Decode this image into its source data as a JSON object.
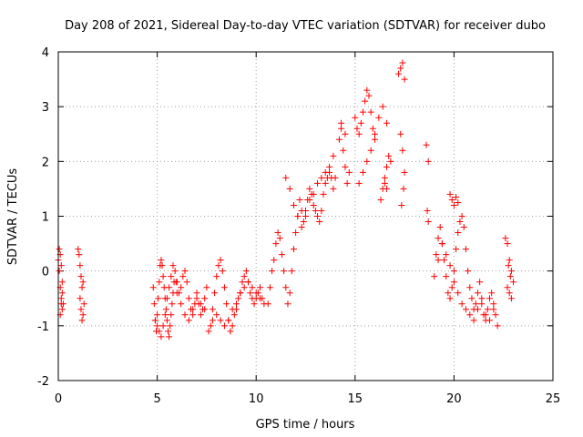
{
  "chart_data": {
    "type": "scatter",
    "title": "Day 208 of 2021, Sidereal Day-to-day VTEC variation (SDTVAR) for receiver dubo",
    "xlabel": "GPS time / hours",
    "ylabel": "SDTVAR / TECUs",
    "xlim": [
      0,
      25
    ],
    "ylim": [
      -2,
      4
    ],
    "xticks": [
      0,
      5,
      10,
      15,
      20,
      25
    ],
    "yticks": [
      -2,
      -1,
      0,
      1,
      2,
      3,
      4
    ],
    "xtick_labels": [
      "0",
      "5",
      "10",
      "15",
      "20",
      "25"
    ],
    "ytick_labels": [
      "-2",
      "-1",
      "0",
      "1",
      "2",
      "3",
      "4"
    ],
    "grid": true,
    "marker": "+",
    "color": "#ff0000",
    "series": [
      {
        "name": "SDTVAR",
        "x": [
          0.0,
          0.05,
          0.1,
          0.15,
          0.2,
          0.25,
          0.05,
          0.1,
          0.15,
          0.2,
          0.1,
          0.15,
          0.2,
          1.0,
          1.05,
          1.1,
          1.15,
          1.2,
          1.25,
          1.1,
          1.15,
          1.2,
          1.25,
          1.3,
          4.8,
          4.85,
          4.9,
          4.95,
          5.0,
          5.05,
          5.1,
          5.15,
          5.2,
          5.25,
          5.3,
          5.35,
          5.4,
          5.45,
          5.5,
          5.55,
          5.6,
          5.65,
          5.7,
          5.75,
          5.8,
          5.85,
          5.9,
          5.95,
          6.0,
          4.9,
          5.0,
          5.1,
          5.2,
          5.3,
          5.4,
          5.5,
          5.6,
          5.7,
          5.8,
          6.0,
          6.1,
          6.2,
          6.3,
          6.4,
          6.5,
          6.6,
          6.7,
          6.8,
          6.9,
          7.0,
          7.1,
          7.2,
          7.3,
          7.4,
          7.5,
          6.2,
          6.4,
          6.6,
          6.8,
          7.0,
          7.2,
          7.4,
          7.6,
          7.7,
          7.8,
          7.9,
          8.0,
          8.1,
          8.2,
          8.3,
          8.4,
          8.5,
          8.6,
          8.7,
          8.8,
          8.9,
          9.0,
          9.1,
          9.2,
          9.3,
          9.4,
          9.5,
          9.6,
          9.7,
          9.8,
          9.9,
          10.0,
          10.1,
          10.2,
          10.3,
          10.4,
          7.8,
          8.0,
          8.2,
          8.4,
          8.6,
          8.8,
          9.0,
          9.2,
          9.4,
          9.6,
          9.8,
          10.0,
          10.2,
          10.6,
          10.7,
          10.8,
          10.9,
          11.0,
          11.1,
          11.2,
          11.3,
          11.4,
          11.5,
          11.6,
          11.7,
          11.8,
          11.9,
          12.0,
          12.1,
          12.2,
          12.3,
          12.4,
          12.5,
          12.6,
          12.7,
          12.8,
          12.9,
          13.0,
          13.1,
          13.2,
          13.3,
          13.4,
          13.5,
          13.6,
          13.7,
          13.8,
          13.9,
          14.0,
          11.5,
          11.7,
          11.9,
          12.1,
          12.3,
          12.5,
          12.7,
          12.9,
          13.1,
          13.3,
          13.5,
          13.7,
          13.9,
          14.2,
          14.3,
          14.4,
          14.5,
          14.6,
          14.7,
          14.3,
          14.5,
          15.0,
          15.1,
          15.2,
          15.3,
          15.4,
          15.5,
          15.6,
          15.7,
          15.8,
          15.9,
          16.0,
          15.2,
          15.4,
          15.6,
          15.8,
          16.0,
          16.2,
          16.4,
          16.6,
          16.3,
          16.4,
          16.5,
          16.6,
          16.7,
          16.8,
          16.5,
          16.6,
          17.2,
          17.3,
          17.4,
          17.5,
          17.3,
          17.4,
          17.5,
          17.35,
          17.45,
          18.6,
          18.7,
          18.65,
          18.7,
          19.0,
          19.1,
          19.2,
          19.3,
          19.4,
          19.5,
          19.6,
          19.7,
          19.8,
          19.9,
          20.0,
          20.1,
          20.2,
          20.3,
          20.4,
          20.5,
          20.6,
          20.7,
          20.8,
          20.9,
          21.0,
          21.1,
          21.2,
          21.3,
          21.4,
          21.5,
          21.6,
          21.7,
          21.8,
          21.9,
          22.0,
          22.1,
          22.2,
          19.2,
          19.4,
          19.6,
          19.8,
          20.0,
          20.2,
          20.4,
          20.6,
          20.8,
          21.0,
          21.2,
          21.4,
          21.6,
          21.8,
          22.0,
          19.8,
          19.9,
          20.0,
          20.1,
          20.2,
          22.6,
          22.7,
          22.8,
          22.9,
          23.0,
          22.7,
          22.8,
          22.9,
          22.75,
          22.85
        ],
        "y": [
          0.2,
          0.0,
          -0.3,
          -0.5,
          -0.7,
          -0.6,
          0.4,
          0.3,
          0.1,
          -0.2,
          -0.8,
          -0.6,
          -0.4,
          0.4,
          0.3,
          0.1,
          -0.1,
          -0.3,
          -0.2,
          -0.5,
          -0.7,
          -0.9,
          -0.8,
          -0.6,
          -0.3,
          -0.6,
          -0.9,
          -1.1,
          -0.8,
          -0.5,
          -0.2,
          0.1,
          0.2,
          0.1,
          -0.1,
          -0.3,
          -0.5,
          -0.7,
          -0.9,
          -1.1,
          -1.2,
          -1.0,
          -0.8,
          -0.6,
          -0.4,
          -0.2,
          0.0,
          -0.2,
          -0.4,
          -0.9,
          -1.0,
          -1.1,
          -1.2,
          -1.0,
          -0.8,
          -0.5,
          -0.3,
          -0.1,
          0.1,
          -0.2,
          -0.4,
          -0.3,
          -0.1,
          0.0,
          -0.2,
          -0.5,
          -0.7,
          -0.8,
          -0.6,
          -0.4,
          -0.6,
          -0.8,
          -0.7,
          -0.5,
          -0.3,
          -0.6,
          -0.8,
          -0.9,
          -0.7,
          -0.5,
          -0.6,
          -0.7,
          -1.1,
          -1.0,
          -0.7,
          -0.4,
          -0.1,
          0.1,
          0.2,
          0.0,
          -0.3,
          -0.6,
          -0.9,
          -1.1,
          -1.0,
          -0.8,
          -0.7,
          -0.5,
          -0.4,
          -0.2,
          -0.1,
          0.0,
          -0.2,
          -0.4,
          -0.5,
          -0.6,
          -0.5,
          -0.4,
          -0.3,
          -0.5,
          -0.6,
          -0.9,
          -0.8,
          -0.9,
          -1.0,
          -0.9,
          -0.7,
          -0.6,
          -0.4,
          -0.3,
          -0.2,
          -0.3,
          -0.4,
          -0.5,
          -0.6,
          -0.3,
          0.0,
          0.2,
          0.5,
          0.7,
          0.6,
          0.3,
          0.0,
          -0.3,
          -0.6,
          -0.4,
          0.0,
          0.4,
          0.7,
          1.0,
          1.3,
          1.1,
          0.9,
          1.1,
          1.3,
          1.5,
          1.4,
          1.2,
          1.1,
          1.0,
          0.9,
          1.1,
          1.4,
          1.6,
          1.7,
          1.8,
          1.7,
          1.5,
          1.7,
          1.7,
          1.5,
          1.2,
          1.0,
          0.8,
          1.0,
          1.3,
          1.4,
          1.6,
          1.7,
          1.8,
          1.9,
          2.1,
          2.4,
          2.6,
          2.2,
          1.9,
          1.6,
          1.8,
          2.7,
          2.5,
          2.8,
          2.6,
          2.5,
          2.7,
          2.9,
          3.1,
          3.3,
          3.2,
          2.9,
          2.6,
          2.4,
          1.6,
          1.8,
          2.0,
          2.2,
          2.5,
          2.8,
          3.0,
          2.7,
          1.3,
          1.5,
          1.7,
          1.9,
          2.1,
          2.0,
          1.6,
          1.5,
          3.6,
          3.7,
          3.8,
          3.5,
          2.5,
          2.2,
          1.8,
          1.2,
          1.5,
          2.3,
          2.0,
          1.1,
          0.9,
          -0.1,
          0.3,
          0.6,
          0.8,
          0.5,
          0.2,
          -0.1,
          -0.4,
          -0.5,
          -0.3,
          0.0,
          0.4,
          0.7,
          0.9,
          1.0,
          0.8,
          0.4,
          0.0,
          -0.3,
          -0.5,
          -0.7,
          -0.6,
          -0.4,
          -0.2,
          -0.5,
          -0.8,
          -0.9,
          -0.7,
          -0.5,
          -0.4,
          -0.6,
          -0.8,
          -1.0,
          0.2,
          0.5,
          0.3,
          0.1,
          -0.2,
          -0.4,
          -0.6,
          -0.7,
          -0.8,
          -0.9,
          -0.7,
          -0.6,
          -0.8,
          -0.9,
          -0.7,
          1.4,
          1.3,
          1.2,
          1.35,
          1.25,
          0.6,
          0.5,
          0.2,
          0.0,
          -0.2,
          -0.3,
          -0.4,
          -0.5,
          0.1,
          -0.1
        ]
      }
    ]
  }
}
